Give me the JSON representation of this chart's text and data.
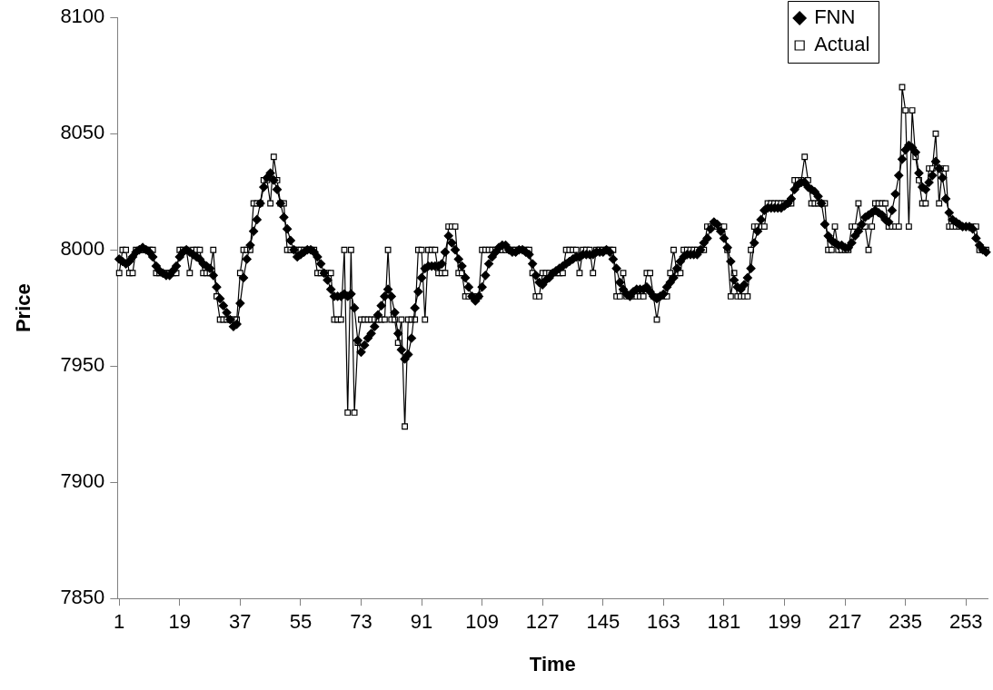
{
  "chart_data": {
    "type": "line",
    "xlabel": "Time",
    "ylabel": "Price",
    "categories": [
      "1",
      null,
      null,
      null,
      null,
      null,
      null,
      null,
      null,
      null,
      null,
      null,
      null,
      null,
      null,
      null,
      null,
      null,
      "19",
      null,
      null,
      null,
      null,
      null,
      null,
      null,
      null,
      null,
      null,
      null,
      null,
      null,
      null,
      null,
      null,
      null,
      "37",
      null,
      null,
      null,
      null,
      null,
      null,
      null,
      null,
      null,
      null,
      null,
      null,
      null,
      null,
      null,
      null,
      null,
      "55",
      null,
      null,
      null,
      null,
      null,
      null,
      null,
      null,
      null,
      null,
      null,
      null,
      null,
      null,
      null,
      null,
      null,
      "73",
      null,
      null,
      null,
      null,
      null,
      null,
      null,
      null,
      null,
      null,
      null,
      null,
      null,
      null,
      null,
      null,
      null,
      "91",
      null,
      null,
      null,
      null,
      null,
      null,
      null,
      null,
      null,
      null,
      null,
      null,
      null,
      null,
      null,
      null,
      null,
      "109",
      null,
      null,
      null,
      null,
      null,
      null,
      null,
      null,
      null,
      null,
      null,
      null,
      null,
      null,
      null,
      null,
      null,
      "127",
      null,
      null,
      null,
      null,
      null,
      null,
      null,
      null,
      null,
      null,
      null,
      null,
      null,
      null,
      null,
      null,
      null,
      "145",
      null,
      null,
      null,
      null,
      null,
      null,
      null,
      null,
      null,
      null,
      null,
      null,
      null,
      null,
      null,
      null,
      null,
      "163",
      null,
      null,
      null,
      null,
      null,
      null,
      null,
      null,
      null,
      null,
      null,
      null,
      null,
      null,
      null,
      null,
      null,
      "181",
      null,
      null,
      null,
      null,
      null,
      null,
      null,
      null,
      null,
      null,
      null,
      null,
      null,
      null,
      null,
      null,
      null,
      "199",
      null,
      null,
      null,
      null,
      null,
      null,
      null,
      null,
      null,
      null,
      null,
      null,
      null,
      null,
      null,
      null,
      null,
      "217",
      null,
      null,
      null,
      null,
      null,
      null,
      null,
      null,
      null,
      null,
      null,
      null,
      null,
      null,
      null,
      null,
      null,
      "235",
      null,
      null,
      null,
      null,
      null,
      null,
      null,
      null,
      null,
      null,
      null,
      null,
      null,
      null,
      null,
      null,
      null,
      "253",
      null,
      null,
      null,
      null,
      null,
      null
    ],
    "series": [
      {
        "name": "FNN",
        "color": "#000000",
        "marker": "diamond",
        "values": [
          7996,
          7995,
          7994,
          7995,
          7997,
          7999,
          8000,
          8001,
          8000,
          7999,
          7997,
          7993,
          7991,
          7990,
          7989,
          7989,
          7991,
          7993,
          7997,
          7999,
          8000,
          7999,
          7998,
          7997,
          7996,
          7994,
          7993,
          7992,
          7989,
          7984,
          7979,
          7976,
          7973,
          7970,
          7967,
          7968,
          7977,
          7988,
          7996,
          8002,
          8008,
          8013,
          8020,
          8027,
          8031,
          8033,
          8030,
          8026,
          8020,
          8014,
          8009,
          8004,
          8000,
          7997,
          7998,
          7999,
          8000,
          8000,
          7999,
          7997,
          7994,
          7990,
          7987,
          7983,
          7980,
          7980,
          7980,
          7981,
          7980,
          7981,
          7975,
          7961,
          7956,
          7959,
          7962,
          7964,
          7967,
          7972,
          7976,
          7980,
          7983,
          7980,
          7973,
          7964,
          7957,
          7953,
          7955,
          7962,
          7975,
          7982,
          7988,
          7992,
          7993,
          7993,
          7993,
          7993,
          7994,
          7999,
          8006,
          8003,
          8000,
          7996,
          7993,
          7988,
          7984,
          7980,
          7978,
          7980,
          7984,
          7989,
          7994,
          7997,
          7999,
          8001,
          8002,
          8002,
          8000,
          7999,
          7999,
          8000,
          8000,
          7999,
          7998,
          7994,
          7989,
          7986,
          7985,
          7987,
          7988,
          7990,
          7991,
          7992,
          7993,
          7994,
          7995,
          7996,
          7997,
          7997,
          7998,
          7998,
          7998,
          7998,
          7999,
          7999,
          7999,
          8000,
          7999,
          7996,
          7992,
          7986,
          7983,
          7981,
          7980,
          7982,
          7983,
          7983,
          7983,
          7984,
          7982,
          7980,
          7979,
          7980,
          7981,
          7984,
          7986,
          7988,
          7992,
          7995,
          7997,
          7998,
          7998,
          7998,
          7998,
          8000,
          8003,
          8005,
          8009,
          8012,
          8011,
          8008,
          8005,
          8001,
          7995,
          7987,
          7984,
          7983,
          7985,
          7988,
          7992,
          8003,
          8008,
          8013,
          8017,
          8018,
          8018,
          8018,
          8018,
          8018,
          8019,
          8020,
          8022,
          8026,
          8028,
          8029,
          8029,
          8027,
          8026,
          8025,
          8023,
          8020,
          8011,
          8006,
          8004,
          8003,
          8002,
          8002,
          8001,
          8001,
          8003,
          8006,
          8008,
          8011,
          8014,
          8015,
          8016,
          8017,
          8016,
          8015,
          8013,
          8012,
          8017,
          8024,
          8032,
          8039,
          8043,
          8045,
          8044,
          8042,
          8033,
          8027,
          8026,
          8029,
          8032,
          8038,
          8035,
          8031,
          8022,
          8016,
          8013,
          8012,
          8011,
          8010,
          8010,
          8010,
          8009,
          8005,
          8002,
          8000,
          7999
        ]
      },
      {
        "name": "Actual",
        "color": "#000000",
        "marker": "square",
        "values": [
          7990,
          8000,
          8000,
          7990,
          7990,
          8000,
          8000,
          8000,
          8000,
          8000,
          8000,
          7990,
          7990,
          7990,
          7990,
          7990,
          7990,
          7990,
          8000,
          8000,
          8000,
          7990,
          8000,
          8000,
          8000,
          7990,
          7990,
          7990,
          8000,
          7980,
          7970,
          7970,
          7970,
          7970,
          7970,
          7970,
          7990,
          8000,
          8000,
          8000,
          8020,
          8020,
          8020,
          8030,
          8030,
          8020,
          8040,
          8030,
          8020,
          8020,
          8000,
          8000,
          8000,
          8000,
          8000,
          8000,
          8000,
          8000,
          8000,
          7990,
          7990,
          7990,
          7990,
          7990,
          7970,
          7970,
          7970,
          8000,
          7930,
          8000,
          7930,
          7960,
          7970,
          7970,
          7970,
          7970,
          7970,
          7970,
          7970,
          7970,
          8000,
          7970,
          7970,
          7960,
          7970,
          7924,
          7970,
          7970,
          7970,
          8000,
          8000,
          7970,
          8000,
          8000,
          8000,
          7990,
          7990,
          7990,
          8010,
          8010,
          8010,
          7990,
          7990,
          7980,
          7980,
          7980,
          7980,
          7980,
          8000,
          8000,
          8000,
          8000,
          8000,
          8000,
          8000,
          8000,
          8000,
          8000,
          8000,
          8000,
          8000,
          8000,
          8000,
          7990,
          7980,
          7980,
          7990,
          7990,
          7990,
          7990,
          7990,
          7990,
          7990,
          8000,
          8000,
          8000,
          8000,
          7990,
          8000,
          8000,
          8000,
          7990,
          8000,
          8000,
          8000,
          8000,
          8000,
          8000,
          7980,
          7980,
          7990,
          7980,
          7980,
          7980,
          7980,
          7980,
          7980,
          7990,
          7990,
          7980,
          7970,
          7980,
          7980,
          7980,
          7990,
          8000,
          7990,
          7990,
          8000,
          8000,
          8000,
          8000,
          8000,
          8000,
          8000,
          8010,
          8010,
          8010,
          8010,
          8010,
          8010,
          8000,
          7980,
          7990,
          7980,
          7980,
          7980,
          7980,
          8000,
          8010,
          8010,
          8010,
          8010,
          8020,
          8020,
          8020,
          8020,
          8020,
          8020,
          8020,
          8020,
          8030,
          8030,
          8030,
          8040,
          8030,
          8020,
          8020,
          8020,
          8020,
          8020,
          8000,
          8000,
          8010,
          8000,
          8000,
          8000,
          8000,
          8010,
          8010,
          8020,
          8010,
          8010,
          8000,
          8010,
          8020,
          8020,
          8020,
          8020,
          8010,
          8010,
          8010,
          8010,
          8070,
          8060,
          8010,
          8060,
          8040,
          8030,
          8020,
          8020,
          8035,
          8035,
          8050,
          8020,
          8035,
          8035,
          8010,
          8010,
          8010,
          8010,
          8010,
          8010,
          8010,
          8010,
          8010,
          8000,
          8000,
          8000
        ]
      }
    ],
    "ylim": [
      7850,
      8100
    ],
    "yticks": [
      7850,
      7900,
      7950,
      8000,
      8050,
      8100
    ],
    "legend": "top right"
  }
}
